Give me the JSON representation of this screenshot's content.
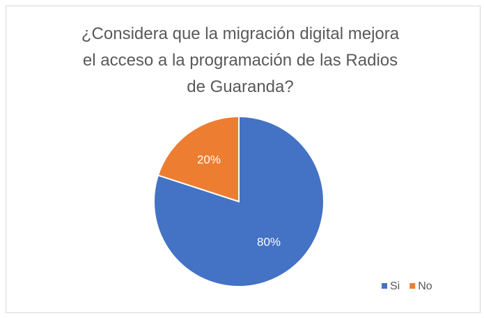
{
  "chart_data": {
    "type": "pie",
    "title": "¿Considera que la migración digital mejora el acceso a la programación de las Radios de Guaranda?",
    "categories": [
      "Si",
      "No"
    ],
    "values": [
      80,
      20
    ],
    "value_labels": [
      "80%",
      "20%"
    ],
    "colors": [
      "#4472c4",
      "#ed7d31"
    ],
    "legend": "bottom-right"
  }
}
